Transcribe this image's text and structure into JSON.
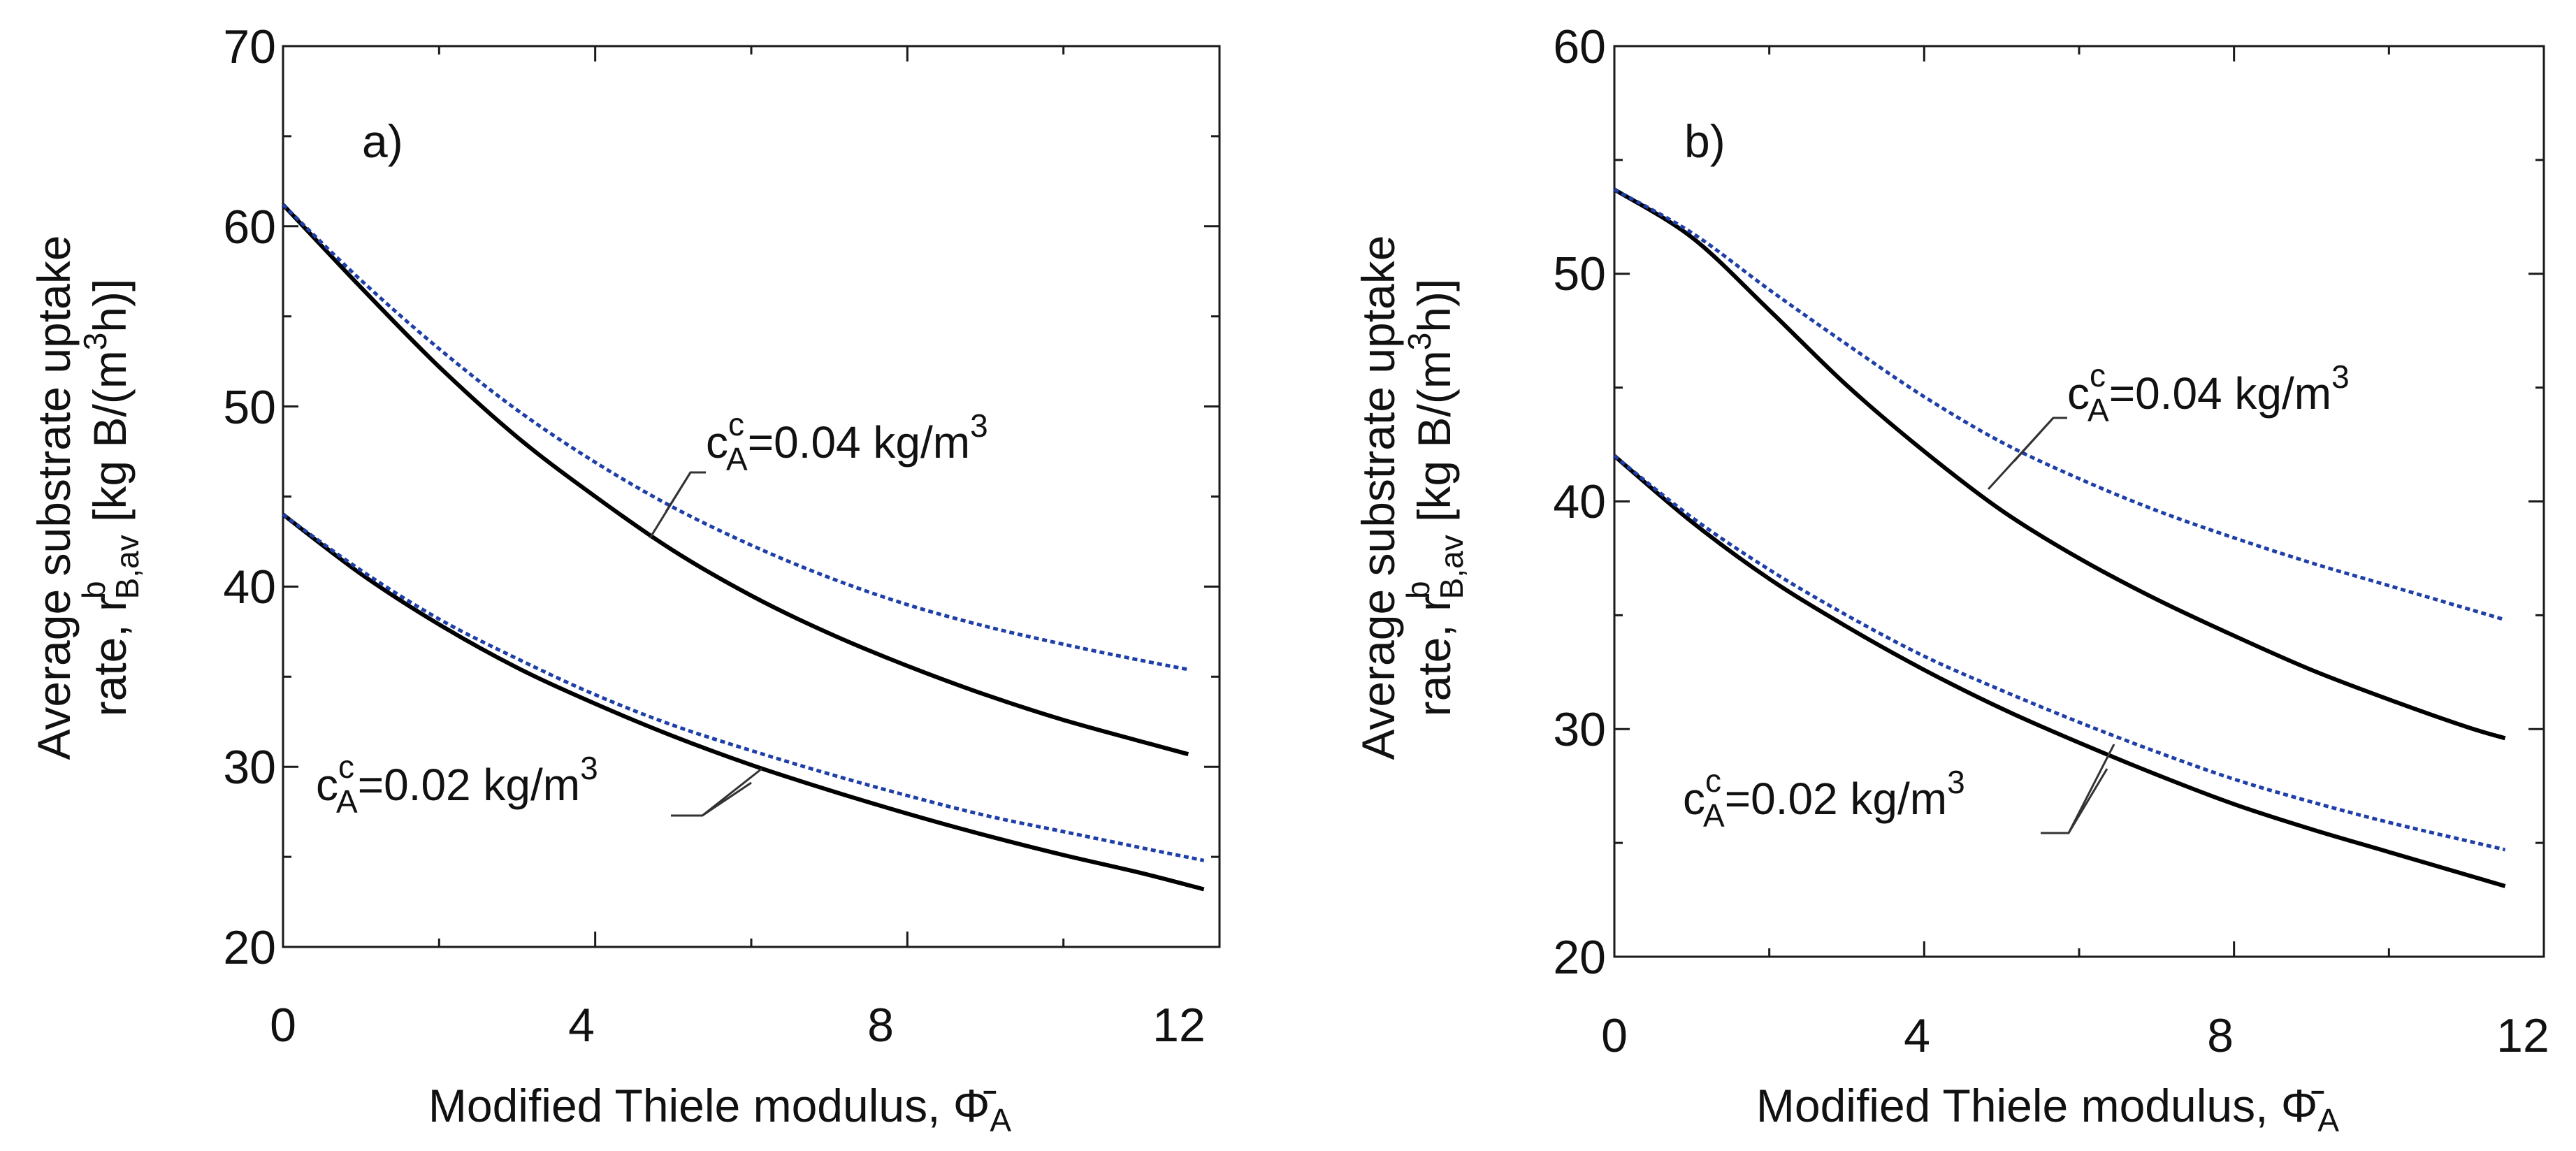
{
  "chart_data": [
    {
      "type": "line",
      "panel_label": "a)",
      "xlabel": "Modified Thiele modulus,",
      "xlabel_symbol": "Φ̄",
      "xlabel_symbol_sub": "A",
      "ylabel_line1": "Average substrate uptake",
      "ylabel_line2_prefix": "rate,  r",
      "ylabel_sup": "b",
      "ylabel_sub": "B,av",
      "ylabel_unit_pre": " [kg B/(m",
      "ylabel_unit_sup": "3",
      "ylabel_unit_post": "h)]",
      "xlim": [
        0,
        12
      ],
      "ylim": [
        20,
        70
      ],
      "xticks": [
        0,
        4,
        8,
        12
      ],
      "yticks": [
        20,
        30,
        40,
        50,
        60,
        70
      ],
      "xticklabels": [
        "0",
        "4",
        "8",
        "12"
      ],
      "yticklabels": [
        "20",
        "30",
        "40",
        "50",
        "60",
        "70"
      ],
      "series": [
        {
          "name": "c_A^c = 0.04 kg/m3 (solid)",
          "style": "solid",
          "color": "#000000",
          "x": [
            0,
            1,
            2,
            3,
            4,
            5,
            6,
            7,
            8,
            9,
            10,
            11,
            11.6
          ],
          "y": [
            61.2,
            56.6,
            52.2,
            48.3,
            45.0,
            42.0,
            39.5,
            37.4,
            35.6,
            34.0,
            32.6,
            31.4,
            30.7
          ]
        },
        {
          "name": "c_A^c = 0.04 kg/m3 (dotted)",
          "style": "dotted",
          "color": "#1f3fa8",
          "x": [
            0,
            1,
            2,
            3,
            4,
            5,
            6,
            7,
            8,
            9,
            10,
            11,
            11.6
          ],
          "y": [
            61.2,
            57.0,
            53.2,
            49.8,
            46.9,
            44.4,
            42.3,
            40.5,
            39.0,
            37.8,
            36.8,
            35.9,
            35.4
          ]
        },
        {
          "name": "c_A^c = 0.02 kg/m3 (solid)",
          "style": "solid",
          "color": "#000000",
          "x": [
            0,
            1,
            2,
            3,
            4,
            5,
            6,
            7,
            8,
            9,
            10,
            11,
            11.8
          ],
          "y": [
            44.0,
            40.7,
            37.9,
            35.5,
            33.5,
            31.7,
            30.1,
            28.7,
            27.4,
            26.2,
            25.1,
            24.1,
            23.2
          ]
        },
        {
          "name": "c_A^c = 0.02 kg/m3 (dotted)",
          "style": "dotted",
          "color": "#1f3fa8",
          "x": [
            0,
            1,
            2,
            3,
            4,
            5,
            6,
            7,
            8,
            9,
            10,
            11,
            11.8
          ],
          "y": [
            44.0,
            40.9,
            38.2,
            36.0,
            34.0,
            32.3,
            30.9,
            29.6,
            28.4,
            27.3,
            26.4,
            25.5,
            24.8
          ]
        }
      ],
      "annotations": [
        {
          "text_main": "c",
          "text_sup": "c",
          "text_sub": "A",
          "text_rest": "=0.04 kg/m",
          "text_unit_sup": "3"
        },
        {
          "text_main": "c",
          "text_sup": "c",
          "text_sub": "A",
          "text_rest": "=0.02 kg/m",
          "text_unit_sup": "3"
        }
      ]
    },
    {
      "type": "line",
      "panel_label": "b)",
      "xlabel": "Modified Thiele modulus,",
      "xlabel_symbol": "Φ̄",
      "xlabel_symbol_sub": "A",
      "ylabel_line1": "Average substrate uptake",
      "ylabel_line2_prefix": "rate,  r",
      "ylabel_sup": "b",
      "ylabel_sub": "B,av",
      "ylabel_unit_pre": " [kg B/(m",
      "ylabel_unit_sup": "3",
      "ylabel_unit_post": "h)]",
      "xlim": [
        0,
        12
      ],
      "ylim": [
        20,
        60
      ],
      "xticks": [
        0,
        4,
        8,
        12
      ],
      "yticks": [
        20,
        30,
        40,
        50,
        60
      ],
      "xticklabels": [
        "0",
        "4",
        "8",
        "12"
      ],
      "yticklabels": [
        "20",
        "30",
        "40",
        "50",
        "60"
      ],
      "series": [
        {
          "name": "c_A^c = 0.04 kg/m3 (solid)",
          "style": "solid",
          "color": "#000000",
          "x": [
            0,
            1,
            2,
            3,
            4,
            5,
            6,
            7,
            8,
            9,
            10,
            11,
            11.5
          ],
          "y": [
            53.7,
            51.6,
            48.4,
            45.1,
            42.2,
            39.6,
            37.5,
            35.7,
            34.1,
            32.6,
            31.3,
            30.1,
            29.6
          ]
        },
        {
          "name": "c_A^c = 0.04 kg/m3 (dotted)",
          "style": "dotted",
          "color": "#1f3fa8",
          "x": [
            0,
            1,
            2,
            3,
            4,
            5,
            6,
            7,
            8,
            9,
            10,
            11,
            11.5
          ],
          "y": [
            53.7,
            51.8,
            49.3,
            46.9,
            44.6,
            42.6,
            41.0,
            39.6,
            38.4,
            37.3,
            36.3,
            35.3,
            34.8
          ]
        },
        {
          "name": "c_A^c = 0.02 kg/m3 (solid)",
          "style": "solid",
          "color": "#000000",
          "x": [
            0,
            1,
            2,
            3,
            4,
            5,
            6,
            7,
            8,
            9,
            10,
            11,
            11.5
          ],
          "y": [
            42.0,
            39.1,
            36.6,
            34.5,
            32.6,
            30.9,
            29.4,
            28.0,
            26.7,
            25.6,
            24.6,
            23.6,
            23.1
          ]
        },
        {
          "name": "c_A^c = 0.02 kg/m3 (dotted)",
          "style": "dotted",
          "color": "#1f3fa8",
          "x": [
            0,
            1,
            2,
            3,
            4,
            5,
            6,
            7,
            8,
            9,
            10,
            11,
            11.5
          ],
          "y": [
            42.0,
            39.3,
            37.0,
            35.0,
            33.2,
            31.7,
            30.3,
            29.0,
            27.8,
            26.8,
            25.9,
            25.1,
            24.7
          ]
        }
      ],
      "annotations": [
        {
          "text_main": "c",
          "text_sup": "c",
          "text_sub": "A",
          "text_rest": "=0.04 kg/m",
          "text_unit_sup": "3"
        },
        {
          "text_main": "c",
          "text_sup": "c",
          "text_sub": "A",
          "text_rest": "=0.02 kg/m",
          "text_unit_sup": "3"
        }
      ]
    }
  ]
}
